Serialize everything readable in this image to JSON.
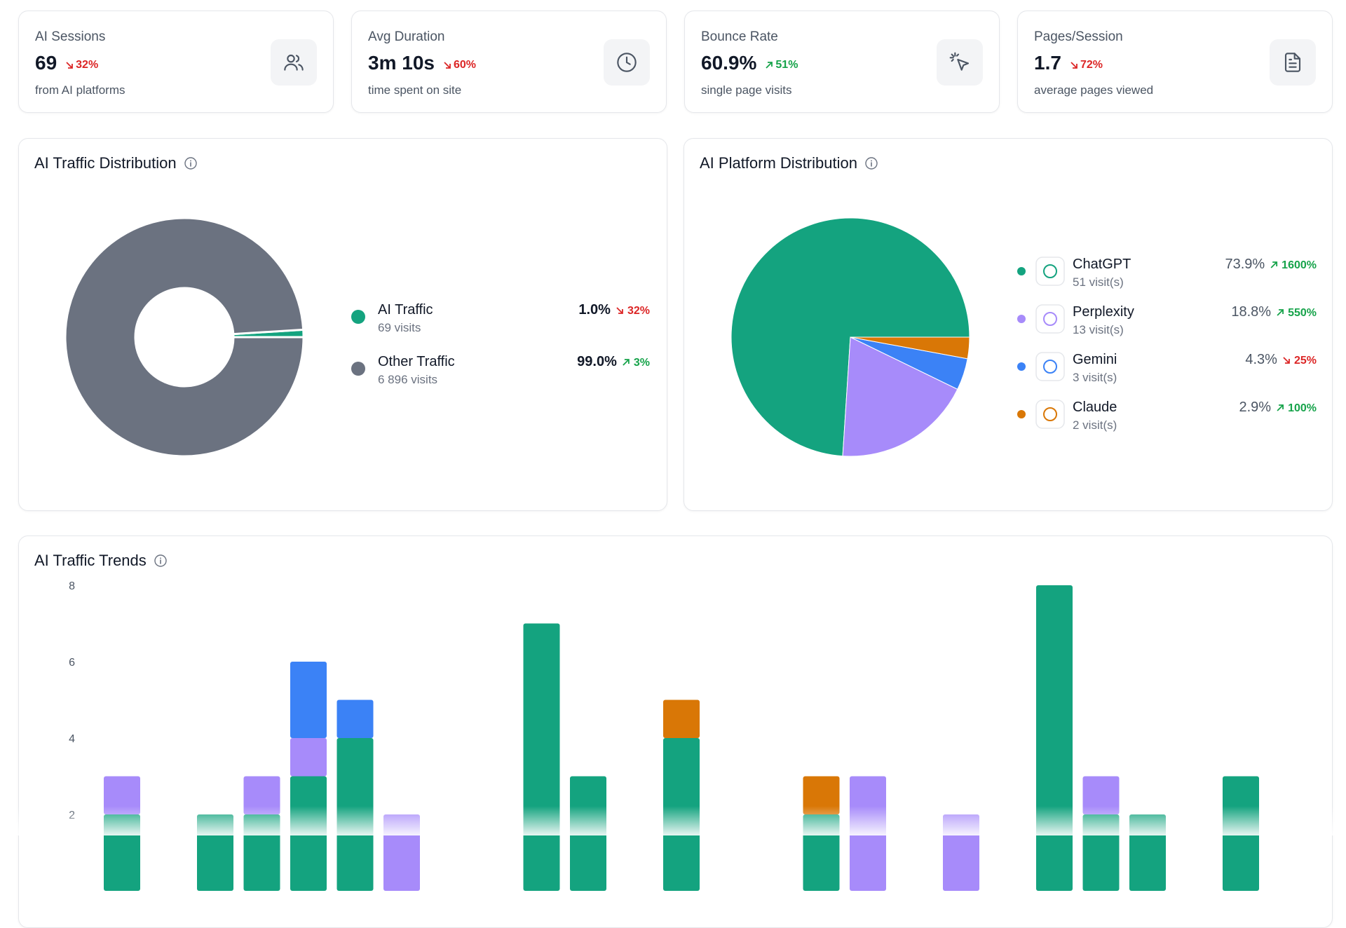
{
  "kpis": [
    {
      "label": "AI Sessions",
      "value": "69",
      "change": "32%",
      "trend": "down",
      "caption": "from AI platforms"
    },
    {
      "label": "Avg Duration",
      "value": "3m 10s",
      "change": "60%",
      "trend": "down",
      "caption": "time spent on site"
    },
    {
      "label": "Bounce Rate",
      "value": "60.9%",
      "change": "51%",
      "trend": "up",
      "caption": "single page visits"
    },
    {
      "label": "Pages/Session",
      "value": "1.7",
      "change": "72%",
      "trend": "down",
      "caption": "average pages viewed"
    }
  ],
  "chart_data": [
    {
      "type": "donut",
      "title": "AI Traffic Distribution",
      "categories": [
        "AI Traffic",
        "Other Traffic"
      ],
      "values": [
        1.0,
        99.0
      ],
      "value_labels": [
        "1.0%",
        "99.0%"
      ],
      "details": [
        "69 visits",
        "6 896 visits"
      ],
      "changes": [
        "32%",
        "3%"
      ],
      "trends": [
        "down",
        "up"
      ],
      "colors": [
        "#14a37f",
        "#6b7280"
      ]
    },
    {
      "type": "pie",
      "title": "AI Platform Distribution",
      "categories": [
        "ChatGPT",
        "Perplexity",
        "Gemini",
        "Claude"
      ],
      "values": [
        73.9,
        18.8,
        4.3,
        2.9
      ],
      "value_labels": [
        "73.9%",
        "18.8%",
        "4.3%",
        "2.9%"
      ],
      "details": [
        "51 visit(s)",
        "13 visit(s)",
        "3 visit(s)",
        "2 visit(s)"
      ],
      "changes": [
        "1600%",
        "550%",
        "25%",
        "100%"
      ],
      "trends": [
        "up",
        "up",
        "down",
        "up"
      ],
      "colors": [
        "#14a37f",
        "#a78bfa",
        "#3b82f6",
        "#d97706"
      ]
    },
    {
      "type": "bar",
      "title": "AI Traffic Trends",
      "stacked": true,
      "categories": [
        null,
        null,
        null,
        null,
        null,
        null,
        null,
        null,
        null,
        null,
        null,
        null,
        null,
        null,
        null,
        null,
        null,
        null,
        null,
        null,
        null,
        null,
        null,
        null,
        null,
        null
      ],
      "series": [
        {
          "name": "ChatGPT",
          "color": "#14a37f",
          "values": [
            2,
            0,
            2,
            2,
            3,
            4,
            0,
            0,
            0,
            7,
            3,
            0,
            4,
            0,
            0,
            2,
            0,
            0,
            0,
            0,
            8,
            2,
            2,
            0,
            3,
            0
          ]
        },
        {
          "name": "Perplexity",
          "color": "#a78bfa",
          "values": [
            1,
            0,
            0,
            1,
            1,
            0,
            2,
            0,
            0,
            0,
            0,
            0,
            0,
            0,
            0,
            0,
            3,
            0,
            2,
            0,
            0,
            1,
            0,
            0,
            0,
            0
          ]
        },
        {
          "name": "Gemini",
          "color": "#3b82f6",
          "values": [
            0,
            0,
            0,
            0,
            2,
            1,
            0,
            0,
            0,
            0,
            0,
            0,
            0,
            0,
            0,
            0,
            0,
            0,
            0,
            0,
            0,
            0,
            0,
            0,
            0,
            0
          ]
        },
        {
          "name": "Claude",
          "color": "#d97706",
          "values": [
            0,
            0,
            0,
            0,
            0,
            0,
            0,
            0,
            0,
            0,
            0,
            0,
            1,
            0,
            0,
            1,
            0,
            0,
            0,
            0,
            0,
            0,
            0,
            0,
            0,
            0
          ]
        }
      ],
      "ylim": [
        0,
        8
      ],
      "yticks": [
        2,
        4,
        6,
        8
      ]
    }
  ]
}
